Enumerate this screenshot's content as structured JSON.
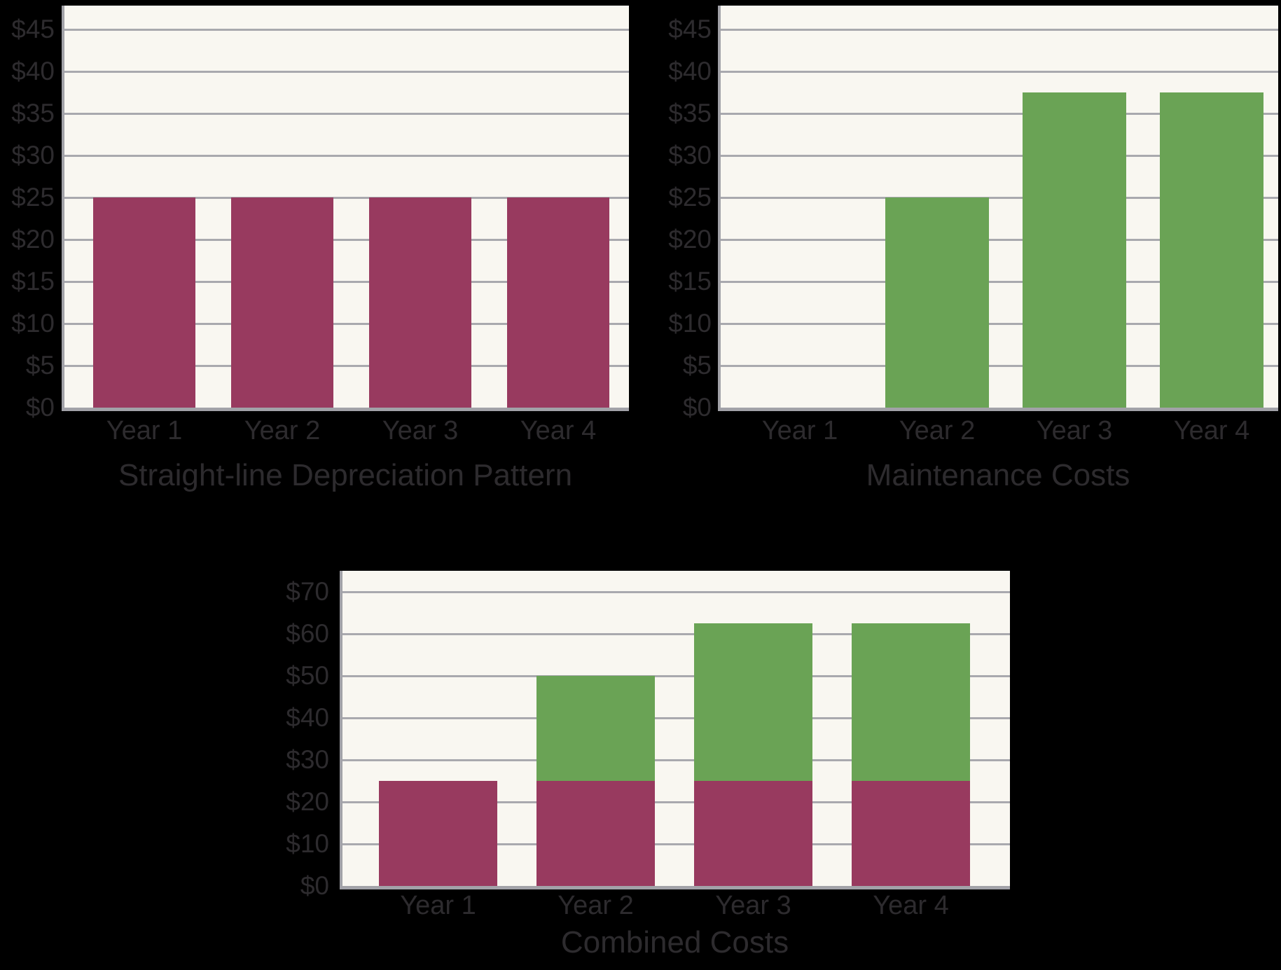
{
  "colors": {
    "background": "#000000",
    "plot_background": "#f9f7f1",
    "gridline": "#a9a9ae",
    "axis": "#a2a2a8",
    "label_text": "#2d2b2e",
    "depreciation_bar": "#983a5f",
    "maintenance_bar": "#6aa355"
  },
  "chart_data": [
    {
      "id": "depreciation",
      "type": "bar",
      "title": "Straight-line Depreciation Pattern",
      "categories": [
        "Year 1",
        "Year 2",
        "Year 3",
        "Year 4"
      ],
      "series": [
        {
          "name": "Depreciation",
          "color": "depreciation_bar",
          "values": [
            25,
            25,
            25,
            25
          ]
        }
      ],
      "y_ticks": [
        {
          "label": "$45",
          "value": 45
        },
        {
          "label": "$40",
          "value": 40
        },
        {
          "label": "$35",
          "value": 35
        },
        {
          "label": "$30",
          "value": 30
        },
        {
          "label": "$25",
          "value": 25
        },
        {
          "label": "$20",
          "value": 20
        },
        {
          "label": "$15",
          "value": 15
        },
        {
          "label": "$10",
          "value": 10
        },
        {
          "label": "$5",
          "value": 5
        },
        {
          "label": "$0",
          "value": 0
        }
      ],
      "xlabel": "",
      "ylabel": "",
      "ylim": [
        0,
        47.8
      ],
      "grid": true,
      "legend": false
    },
    {
      "id": "maintenance",
      "type": "bar",
      "title": "Maintenance Costs",
      "categories": [
        "Year 1",
        "Year 2",
        "Year 3",
        "Year 4"
      ],
      "series": [
        {
          "name": "Maintenance",
          "color": "maintenance_bar",
          "values": [
            0,
            25,
            37.5,
            37.5
          ]
        }
      ],
      "y_ticks": [
        {
          "label": "$45",
          "value": 45
        },
        {
          "label": "$40",
          "value": 40
        },
        {
          "label": "$35",
          "value": 35
        },
        {
          "label": "$30",
          "value": 30
        },
        {
          "label": "$25",
          "value": 25
        },
        {
          "label": "$20",
          "value": 20
        },
        {
          "label": "$15",
          "value": 15
        },
        {
          "label": "$10",
          "value": 10
        },
        {
          "label": "$5",
          "value": 5
        },
        {
          "label": "$0",
          "value": 0
        }
      ],
      "xlabel": "",
      "ylabel": "",
      "ylim": [
        0,
        47.8
      ],
      "grid": true,
      "legend": false
    },
    {
      "id": "combined",
      "type": "bar",
      "title": "Combined Costs",
      "categories": [
        "Year 1",
        "Year 2",
        "Year 3",
        "Year 4"
      ],
      "series": [
        {
          "name": "Depreciation",
          "color": "depreciation_bar",
          "values": [
            25,
            25,
            25,
            25
          ]
        },
        {
          "name": "Maintenance",
          "color": "maintenance_bar",
          "values": [
            0,
            25,
            37.5,
            37.5
          ]
        }
      ],
      "y_ticks": [
        {
          "label": "$70",
          "value": 70
        },
        {
          "label": "$60",
          "value": 60
        },
        {
          "label": "$50",
          "value": 50
        },
        {
          "label": "$40",
          "value": 40
        },
        {
          "label": "$30",
          "value": 30
        },
        {
          "label": "$20",
          "value": 20
        },
        {
          "label": "$10",
          "value": 10
        },
        {
          "label": "$0",
          "value": 0
        }
      ],
      "xlabel": "",
      "ylabel": "",
      "ylim": [
        0,
        75
      ],
      "grid": true,
      "legend": false
    }
  ]
}
